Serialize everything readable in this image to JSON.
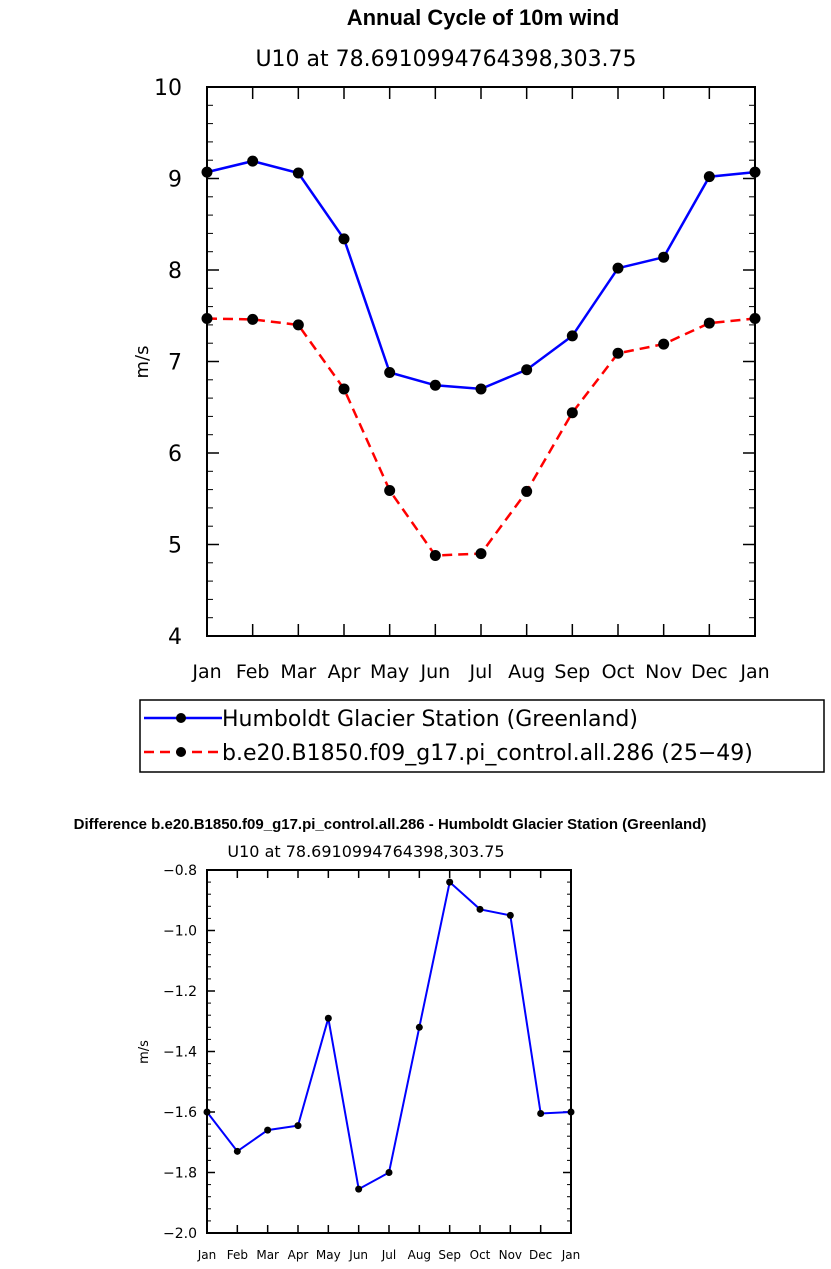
{
  "chart_data": [
    {
      "type": "line",
      "title": "Annual Cycle of 10m wind",
      "subtitle": "U10 at 78.6910994764398,303.75",
      "xlabel": "",
      "ylabel": "m/s",
      "categories": [
        "Jan",
        "Feb",
        "Mar",
        "Apr",
        "May",
        "Jun",
        "Jul",
        "Aug",
        "Sep",
        "Oct",
        "Nov",
        "Dec",
        "Jan"
      ],
      "ylim": [
        4,
        10
      ],
      "yticks": [
        4,
        5,
        6,
        7,
        8,
        9,
        10
      ],
      "ytick_labels": [
        "4",
        "5",
        "6",
        "7",
        "8",
        "9",
        "10"
      ],
      "legend_position": "bottom",
      "series": [
        {
          "name": "Humboldt Glacier Station (Greenland)",
          "color": "#0000ff",
          "style": "solid",
          "values": [
            9.07,
            9.19,
            9.06,
            8.34,
            6.88,
            6.74,
            6.7,
            6.91,
            7.28,
            8.02,
            8.14,
            9.02,
            9.07
          ]
        },
        {
          "name": "b.e20.B1850.f09_g17.pi_control.all.286 (25−49)",
          "color": "#ff0000",
          "style": "dashed",
          "values": [
            7.47,
            7.46,
            7.4,
            6.7,
            5.59,
            4.88,
            4.9,
            5.58,
            6.44,
            7.09,
            7.19,
            7.42,
            7.47
          ]
        }
      ]
    },
    {
      "type": "line",
      "title": "Difference b.e20.B1850.f09_g17.pi_control.all.286 - Humboldt Glacier Station (Greenland)",
      "subtitle": "U10 at 78.6910994764398,303.75",
      "xlabel": "",
      "ylabel": "m/s",
      "categories": [
        "Jan",
        "Feb",
        "Mar",
        "Apr",
        "May",
        "Jun",
        "Jul",
        "Aug",
        "Sep",
        "Oct",
        "Nov",
        "Dec",
        "Jan"
      ],
      "ylim": [
        -2.0,
        -0.8
      ],
      "yticks": [
        -2.0,
        -1.8,
        -1.6,
        -1.4,
        -1.2,
        -1.0,
        -0.8
      ],
      "ytick_labels": [
        "−2.0",
        "−1.8",
        "−1.6",
        "−1.4",
        "−1.2",
        "−1.0",
        "−0.8"
      ],
      "series": [
        {
          "name": "Difference",
          "color": "#0000ff",
          "style": "solid",
          "values": [
            -1.6,
            -1.73,
            -1.66,
            -1.645,
            -1.29,
            -1.855,
            -1.8,
            -1.32,
            -0.84,
            -0.93,
            -0.95,
            -1.605,
            -1.6
          ]
        }
      ]
    }
  ]
}
